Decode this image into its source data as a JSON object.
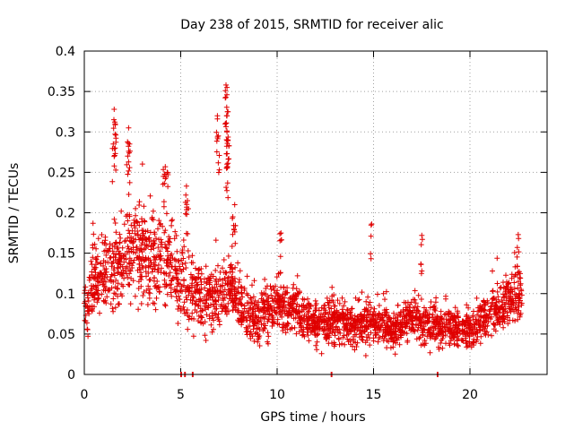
{
  "chart_data": {
    "type": "scatter",
    "title": "Day 238 of 2015, SRMTID for receiver alic",
    "xlabel": "GPS time / hours",
    "ylabel": "SRMTID / TECUs",
    "xlim": [
      0,
      24
    ],
    "ylim": [
      0,
      0.4
    ],
    "x_ticks": [
      0,
      5,
      10,
      15,
      20
    ],
    "x_tick_labels": [
      "0",
      "5",
      "10",
      "15",
      "20"
    ],
    "y_ticks": [
      0,
      0.05,
      0.1,
      0.15,
      0.2,
      0.25,
      0.3,
      0.35,
      0.4
    ],
    "y_tick_labels": [
      "0",
      "0.05",
      "0.1",
      "0.15",
      "0.2",
      "0.25",
      "0.3",
      "0.35",
      "0.4"
    ],
    "grid": true,
    "marker": "+",
    "color": "#e00000",
    "trend": [
      [
        0.0,
        0.08
      ],
      [
        0.5,
        0.11
      ],
      [
        1.0,
        0.12
      ],
      [
        1.5,
        0.13
      ],
      [
        2.0,
        0.14
      ],
      [
        2.5,
        0.15
      ],
      [
        3.0,
        0.15
      ],
      [
        3.5,
        0.15
      ],
      [
        4.0,
        0.14
      ],
      [
        4.5,
        0.13
      ],
      [
        5.0,
        0.11
      ],
      [
        5.5,
        0.1
      ],
      [
        6.0,
        0.095
      ],
      [
        6.5,
        0.095
      ],
      [
        7.0,
        0.1
      ],
      [
        7.5,
        0.11
      ],
      [
        8.0,
        0.09
      ],
      [
        8.5,
        0.075
      ],
      [
        9.0,
        0.07
      ],
      [
        10.0,
        0.085
      ],
      [
        11.0,
        0.075
      ],
      [
        12.0,
        0.06
      ],
      [
        13.0,
        0.065
      ],
      [
        14.0,
        0.06
      ],
      [
        15.0,
        0.065
      ],
      [
        16.0,
        0.055
      ],
      [
        17.0,
        0.07
      ],
      [
        18.0,
        0.06
      ],
      [
        19.0,
        0.06
      ],
      [
        20.0,
        0.055
      ],
      [
        21.0,
        0.075
      ],
      [
        22.0,
        0.09
      ],
      [
        22.7,
        0.1
      ]
    ],
    "spread": [
      [
        0.0,
        0.03
      ],
      [
        2.0,
        0.05
      ],
      [
        4.0,
        0.05
      ],
      [
        6.0,
        0.035
      ],
      [
        8.0,
        0.03
      ],
      [
        12.0,
        0.025
      ],
      [
        20.0,
        0.02
      ],
      [
        22.7,
        0.03
      ]
    ],
    "time_range": [
      0,
      22.7
    ],
    "point_count": 2600,
    "peaks": [
      {
        "x": 1.55,
        "y": 0.328
      },
      {
        "x": 1.6,
        "y": 0.31
      },
      {
        "x": 1.5,
        "y": 0.285
      },
      {
        "x": 1.6,
        "y": 0.28
      },
      {
        "x": 2.3,
        "y": 0.305
      },
      {
        "x": 2.35,
        "y": 0.285
      },
      {
        "x": 2.25,
        "y": 0.27
      },
      {
        "x": 4.2,
        "y": 0.257
      },
      {
        "x": 4.3,
        "y": 0.25
      },
      {
        "x": 4.1,
        "y": 0.245
      },
      {
        "x": 5.3,
        "y": 0.233
      },
      {
        "x": 5.35,
        "y": 0.215
      },
      {
        "x": 7.35,
        "y": 0.358
      },
      {
        "x": 7.4,
        "y": 0.355
      },
      {
        "x": 7.38,
        "y": 0.32
      },
      {
        "x": 7.4,
        "y": 0.3
      },
      {
        "x": 7.45,
        "y": 0.29
      },
      {
        "x": 7.4,
        "y": 0.26
      },
      {
        "x": 6.9,
        "y": 0.32
      },
      {
        "x": 6.95,
        "y": 0.295
      },
      {
        "x": 7.8,
        "y": 0.21
      },
      {
        "x": 7.7,
        "y": 0.195
      },
      {
        "x": 10.2,
        "y": 0.175
      },
      {
        "x": 14.9,
        "y": 0.186
      },
      {
        "x": 17.5,
        "y": 0.172
      },
      {
        "x": 22.5,
        "y": 0.173
      },
      {
        "x": 0.45,
        "y": 0.187
      }
    ],
    "zero_points": [
      5.0,
      5.2,
      5.6,
      12.8,
      18.3
    ]
  }
}
